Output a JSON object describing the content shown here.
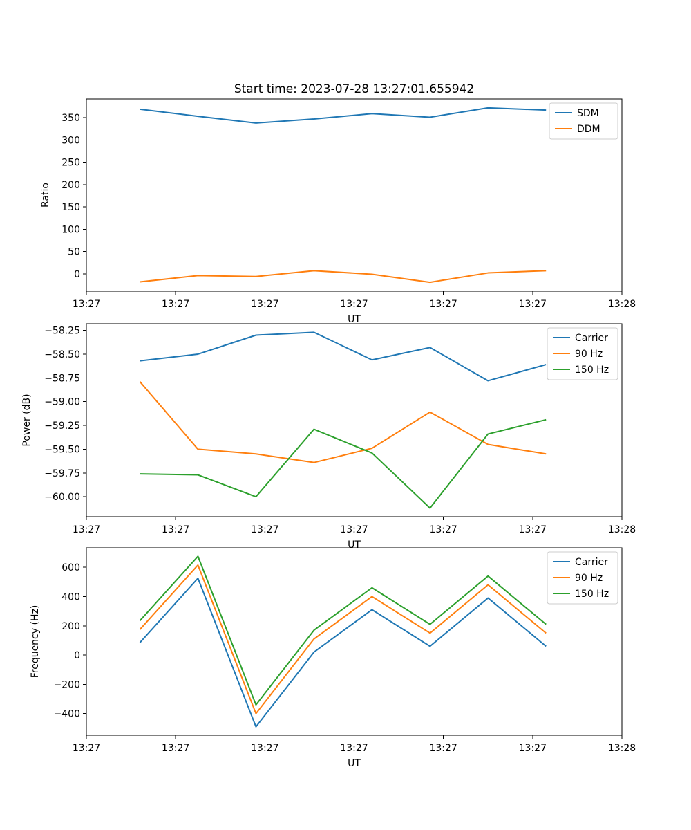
{
  "title": "Start time: 2023-07-28 13:27:01.655942",
  "x_axis": {
    "label": "UT",
    "xlim_seconds": [
      0,
      60
    ],
    "tick_seconds": [
      0,
      10,
      20,
      30,
      40,
      50,
      60
    ],
    "tick_labels": [
      "13:27",
      "13:27",
      "13:27",
      "13:27",
      "13:27",
      "13:27",
      "13:28"
    ]
  },
  "chart_data": [
    {
      "id": "ratio",
      "type": "line",
      "title": "Start time: 2023-07-28 13:27:01.655942",
      "xlabel": "UT",
      "ylabel": "Ratio",
      "ylim": [
        -39,
        392
      ],
      "yticks": [
        0,
        50,
        100,
        150,
        200,
        250,
        300,
        350
      ],
      "ytick_labels": [
        "0",
        "50",
        "100",
        "150",
        "200",
        "250",
        "300",
        "350"
      ],
      "legend_position": "upper right",
      "x_seconds": [
        6,
        12.5,
        19,
        25.5,
        32,
        38.5,
        45,
        51.5
      ],
      "series": [
        {
          "name": "SDM",
          "color": "#1f77b4",
          "values": [
            369,
            353,
            338,
            347,
            359,
            351,
            372,
            367
          ]
        },
        {
          "name": "DDM",
          "color": "#ff7f0e",
          "values": [
            -18,
            -4,
            -6,
            7,
            -1,
            -19,
            2,
            7
          ]
        }
      ]
    },
    {
      "id": "power",
      "type": "line",
      "title": "",
      "xlabel": "UT",
      "ylabel": "Power (dB)",
      "ylim": [
        -60.21,
        -58.18
      ],
      "yticks": [
        -60.0,
        -59.75,
        -59.5,
        -59.25,
        -59.0,
        -58.75,
        -58.5,
        -58.25
      ],
      "ytick_labels": [
        "−60.00",
        "−59.75",
        "−59.50",
        "−59.25",
        "−59.00",
        "−58.75",
        "−58.50",
        "−58.25"
      ],
      "legend_position": "upper right",
      "x_seconds": [
        6,
        12.5,
        19,
        25.5,
        32,
        38.5,
        45,
        51.5
      ],
      "series": [
        {
          "name": "Carrier",
          "color": "#1f77b4",
          "values": [
            -58.57,
            -58.5,
            -58.3,
            -58.27,
            -58.56,
            -58.43,
            -58.78,
            -58.61
          ]
        },
        {
          "name": "90 Hz",
          "color": "#ff7f0e",
          "values": [
            -58.79,
            -59.5,
            -59.55,
            -59.64,
            -59.49,
            -59.11,
            -59.45,
            -59.55
          ]
        },
        {
          "name": "150 Hz",
          "color": "#2ca02c",
          "values": [
            -59.76,
            -59.77,
            -60.0,
            -59.29,
            -59.54,
            -60.12,
            -59.34,
            -59.19
          ]
        }
      ]
    },
    {
      "id": "frequency",
      "type": "line",
      "title": "",
      "xlabel": "UT",
      "ylabel": "Frequency (Hz)",
      "ylim": [
        -548,
        733
      ],
      "yticks": [
        -400,
        -200,
        0,
        200,
        400,
        600
      ],
      "ytick_labels": [
        "−400",
        "−200",
        "0",
        "200",
        "400",
        "600"
      ],
      "legend_position": "upper right",
      "x_seconds": [
        6,
        12.5,
        19,
        25.5,
        32,
        38.5,
        45,
        51.5
      ],
      "series": [
        {
          "name": "Carrier",
          "color": "#1f77b4",
          "values": [
            85,
            525,
            -490,
            20,
            310,
            60,
            390,
            60
          ]
        },
        {
          "name": "90 Hz",
          "color": "#ff7f0e",
          "values": [
            175,
            615,
            -400,
            110,
            400,
            150,
            480,
            150
          ]
        },
        {
          "name": "150 Hz",
          "color": "#2ca02c",
          "values": [
            235,
            675,
            -340,
            170,
            460,
            210,
            540,
            210
          ]
        }
      ]
    }
  ]
}
